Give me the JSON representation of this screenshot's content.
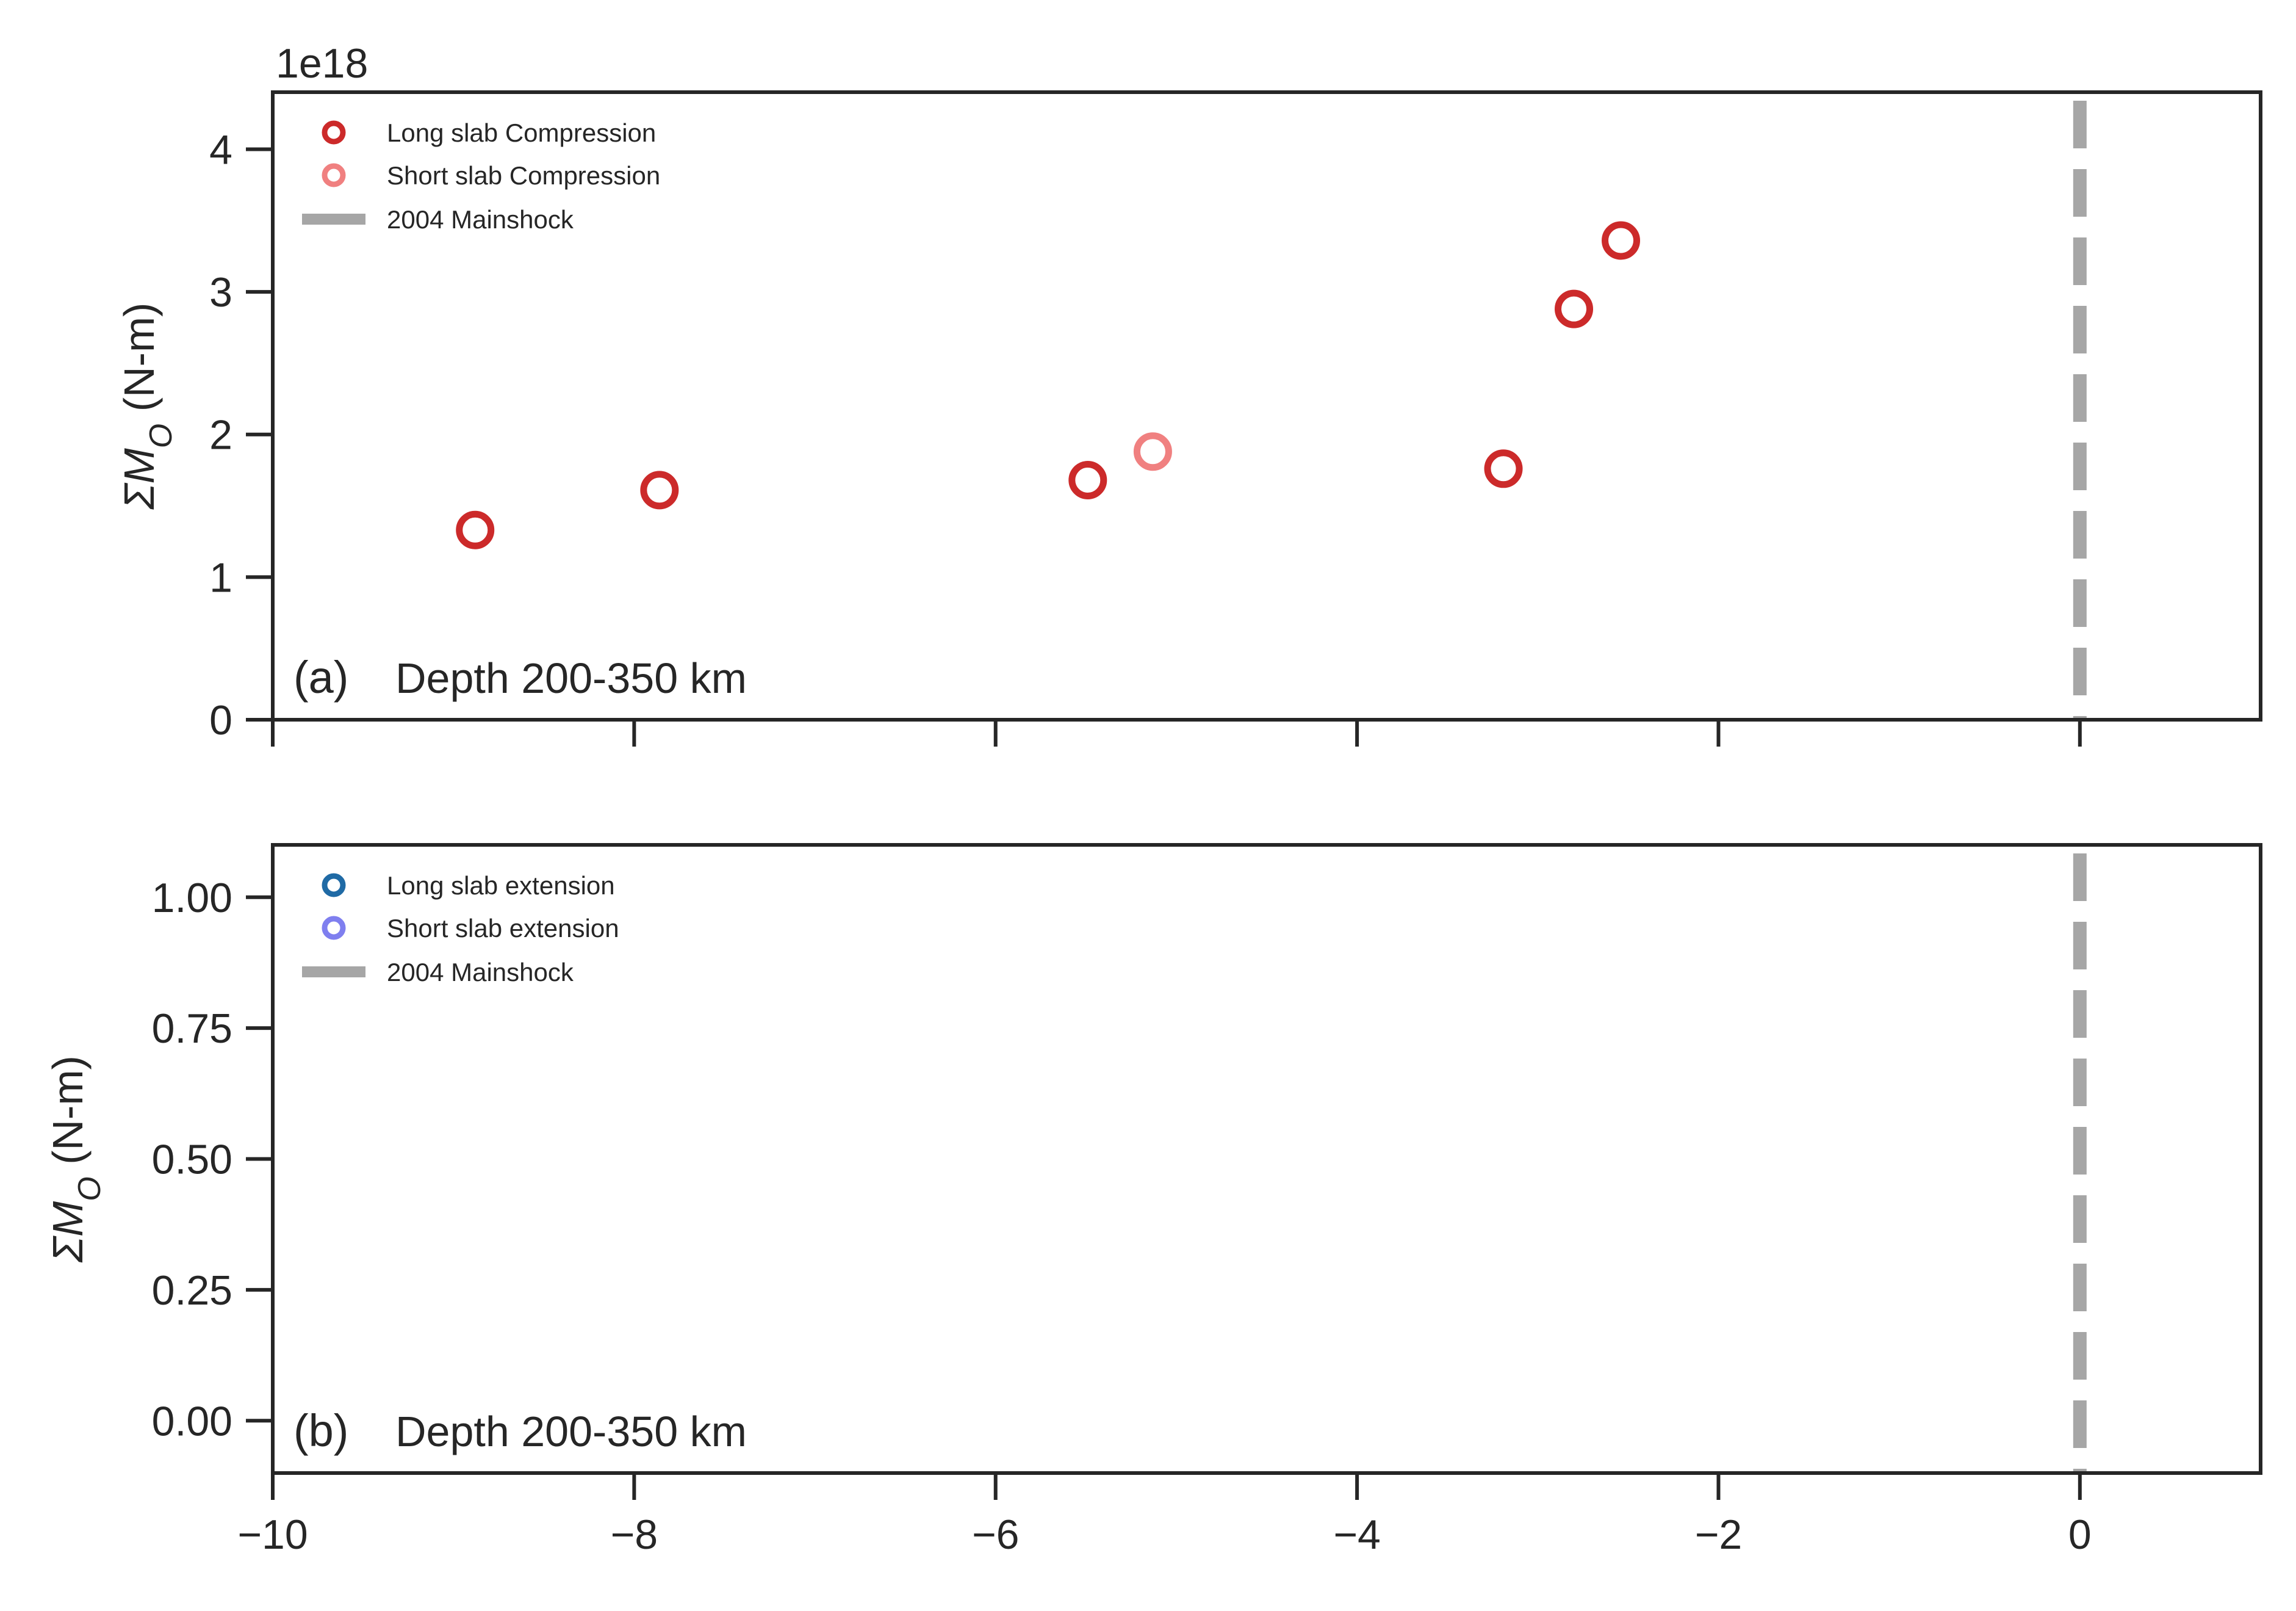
{
  "figure": {
    "background": "#ffffff"
  },
  "chart_data": [
    {
      "type": "scatter",
      "panel_tag": "(a)",
      "annotation": "Depth  200-350 km",
      "ylabel_sym": "ΣM",
      "ylabel_sub": "O",
      "ylabel_unit": " (N-m)",
      "y_scale_label": "1e18",
      "xlim": [
        -10,
        1
      ],
      "ylim": [
        0,
        4.4
      ],
      "show_x_tick_labels": false,
      "x_ticks": [
        {
          "value": -10,
          "label": "−10"
        },
        {
          "value": -8,
          "label": "−8"
        },
        {
          "value": -6,
          "label": "−6"
        },
        {
          "value": -4,
          "label": "−4"
        },
        {
          "value": -2,
          "label": "−2"
        },
        {
          "value": 0,
          "label": "0"
        }
      ],
      "y_ticks": [
        {
          "value": 0,
          "label": "0"
        },
        {
          "value": 1,
          "label": "1"
        },
        {
          "value": 2,
          "label": "2"
        },
        {
          "value": 3,
          "label": "3"
        },
        {
          "value": 4,
          "label": "4"
        }
      ],
      "grid": false,
      "legend_position": "top-left",
      "series": [
        {
          "name": "Long slab Compression",
          "marker": "open-circle",
          "color": "#cc2a2a",
          "points": [
            {
              "x": -8.88,
              "y": 1.33
            },
            {
              "x": -7.86,
              "y": 1.61
            },
            {
              "x": -5.49,
              "y": 1.68
            },
            {
              "x": -3.19,
              "y": 1.76
            },
            {
              "x": -2.8,
              "y": 2.88
            },
            {
              "x": -2.54,
              "y": 3.36
            }
          ]
        },
        {
          "name": "Short slab Compression",
          "marker": "open-circle",
          "color": "#f08080",
          "points": [
            {
              "x": -5.13,
              "y": 1.88
            }
          ]
        }
      ],
      "reference_line": {
        "name": "2004 Mainshock",
        "x": 0,
        "style": "dashed",
        "color": "#a6a6a6"
      }
    },
    {
      "type": "scatter",
      "panel_tag": "(b)",
      "annotation": "Depth 200-350 km",
      "ylabel_sym": "ΣM",
      "ylabel_sub": "O",
      "ylabel_unit": " (N-m)",
      "xlim": [
        -10,
        1
      ],
      "ylim": [
        -0.1,
        1.1
      ],
      "show_x_tick_labels": true,
      "x_ticks": [
        {
          "value": -10,
          "label": "−10"
        },
        {
          "value": -8,
          "label": "−8"
        },
        {
          "value": -6,
          "label": "−6"
        },
        {
          "value": -4,
          "label": "−4"
        },
        {
          "value": -2,
          "label": "−2"
        },
        {
          "value": 0,
          "label": "0"
        }
      ],
      "y_ticks": [
        {
          "value": 0,
          "label": "0.00"
        },
        {
          "value": 0.25,
          "label": "0.25"
        },
        {
          "value": 0.5,
          "label": "0.50"
        },
        {
          "value": 0.75,
          "label": "0.75"
        },
        {
          "value": 1,
          "label": "1.00"
        }
      ],
      "grid": false,
      "legend_position": "top-left",
      "series": [
        {
          "name": "Long slab extension",
          "marker": "open-circle",
          "color": "#1f6aa5",
          "points": []
        },
        {
          "name": "Short slab extension",
          "marker": "open-circle",
          "color": "#7f7fef",
          "points": []
        }
      ],
      "reference_line": {
        "name": "2004 Mainshock",
        "x": 0,
        "style": "dashed",
        "color": "#a6a6a6"
      }
    }
  ]
}
